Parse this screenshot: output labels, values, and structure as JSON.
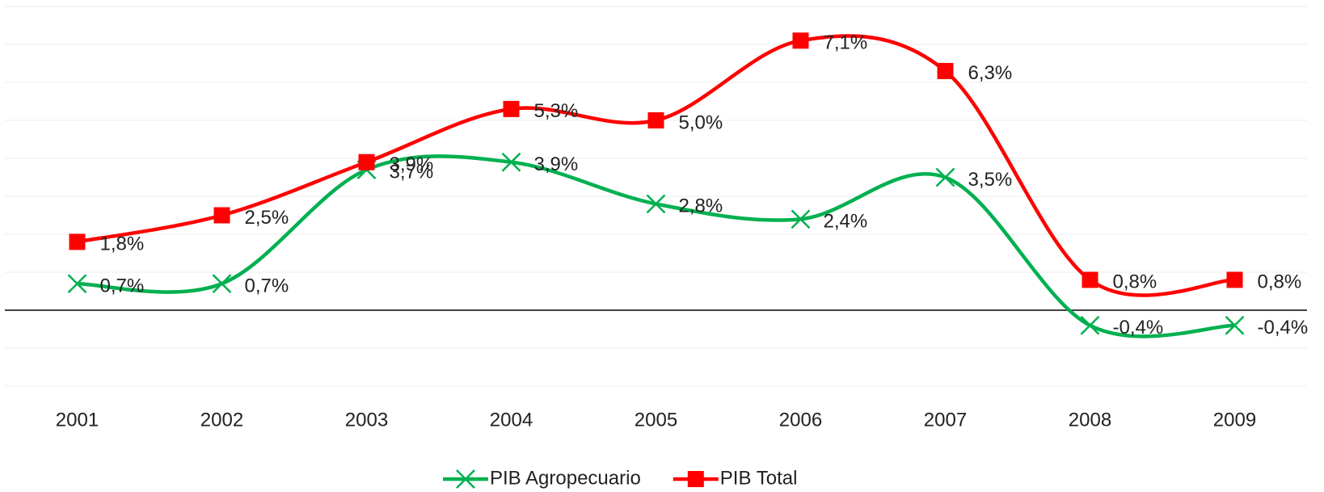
{
  "chart_data": {
    "type": "line",
    "categories": [
      "2001",
      "2002",
      "2003",
      "2004",
      "2005",
      "2006",
      "2007",
      "2008",
      "2009"
    ],
    "series": [
      {
        "name": "PIB Agropecuario",
        "color": "#00b050",
        "marker": "x",
        "values": [
          0.7,
          0.7,
          3.7,
          3.9,
          2.8,
          2.4,
          3.5,
          -0.4,
          -0.4
        ],
        "value_labels": [
          "0,7%",
          "0,7%",
          "3,7%",
          "3,9%",
          "2,8%",
          "2,4%",
          "3,5%",
          "-0,4%",
          "-0,4%"
        ]
      },
      {
        "name": "PIB Total",
        "color": "#ff0000",
        "marker": "square",
        "values": [
          1.8,
          2.5,
          3.9,
          5.3,
          5.0,
          7.1,
          6.3,
          0.8,
          0.8
        ],
        "value_labels": [
          "1,8%",
          "2,5%",
          "3,9%",
          "5,3%",
          "5,0%",
          "7,1%",
          "6,3%",
          "0,8%",
          "0,8%"
        ]
      }
    ],
    "ylim": [
      -2,
      8
    ],
    "gridlines": [
      -2,
      -1,
      0,
      1,
      2,
      3,
      4,
      5,
      6,
      7,
      8
    ],
    "grid": true,
    "smooth": true,
    "legend": "bottom"
  }
}
